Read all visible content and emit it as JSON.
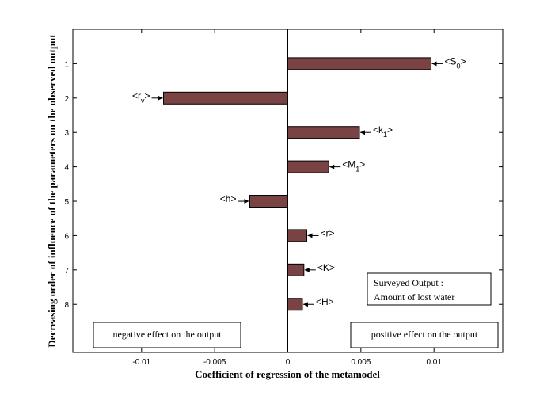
{
  "chart_data": {
    "type": "bar",
    "orientation": "horizontal",
    "xlabel": "Coefficient of regression of the metamodel",
    "ylabel": "Decreasing order of influence of the parameters on the observed output",
    "xlim": [
      -0.0147,
      0.0147
    ],
    "ylim": [
      0,
      9.4
    ],
    "x_ticks": [
      -0.01,
      -0.005,
      0,
      0.005,
      0.01
    ],
    "x_tick_labels": [
      "-0.01",
      "-0.005",
      "0",
      "0.005",
      "0.01"
    ],
    "categories": [
      "1",
      "2",
      "3",
      "4",
      "5",
      "6",
      "7",
      "8"
    ],
    "values": [
      0.0098,
      -0.0085,
      0.0049,
      0.0028,
      -0.0026,
      0.0013,
      0.0011,
      0.001
    ],
    "bar_labels": [
      {
        "base": "S",
        "sub": "0"
      },
      {
        "base": "r",
        "sub": "v"
      },
      {
        "base": "k",
        "sub": "1"
      },
      {
        "base": "M",
        "sub": "1"
      },
      {
        "base": "h",
        "sub": ""
      },
      {
        "base": "r",
        "sub": ""
      },
      {
        "base": "K",
        "sub": ""
      },
      {
        "base": "H",
        "sub": ""
      }
    ],
    "bar_color": "#7a4343",
    "annotations": {
      "negative": "negative effect on the output",
      "positive": "positive effect on the output",
      "output_line1": "Surveyed Output :",
      "output_line2": "Amount of lost water"
    },
    "grid": false
  }
}
